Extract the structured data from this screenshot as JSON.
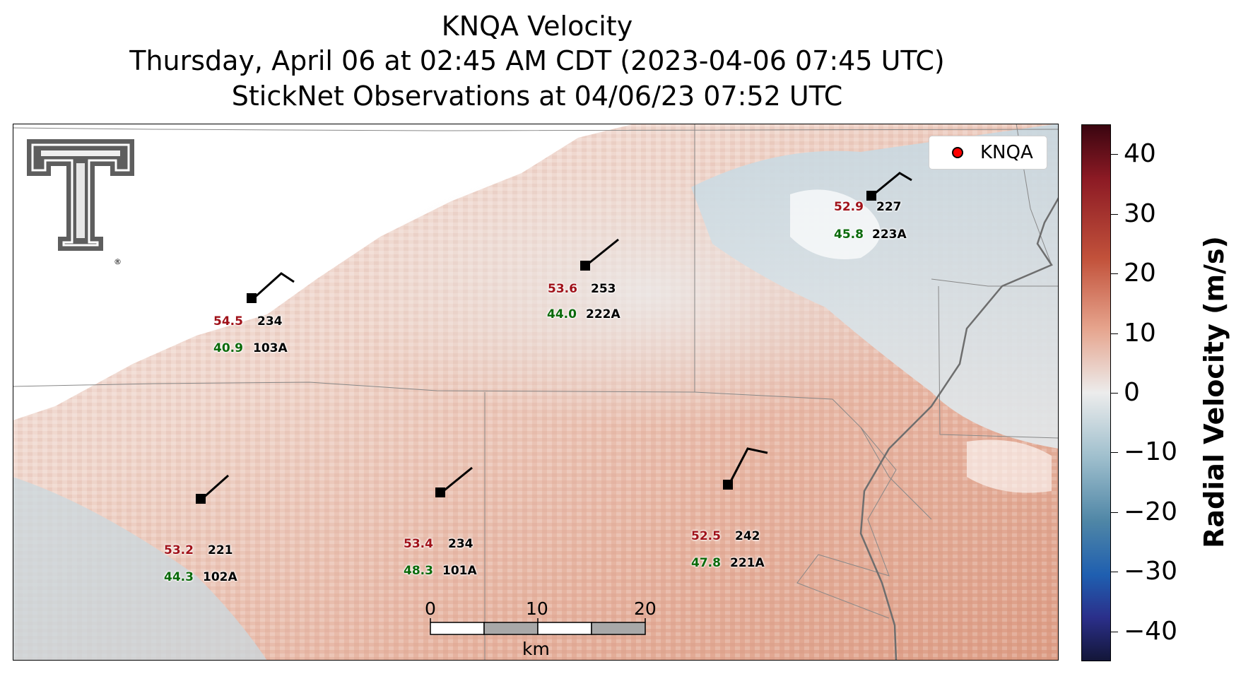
{
  "title": {
    "line1": "KNQA Velocity",
    "line2": "Thursday, April 06 at 02:45 AM CDT (2023-04-06 07:45 UTC)",
    "line3": "StickNet Observations at 04/06/23 07:52 UTC"
  },
  "legend": {
    "label": "KNQA",
    "marker_color": "#ff0000"
  },
  "colorbar": {
    "label": "Radial Velocity (m/s)",
    "ticks": [
      "40",
      "30",
      "20",
      "10",
      "0",
      "−10",
      "−20",
      "−30",
      "−40"
    ],
    "range": [
      -45,
      45
    ]
  },
  "logo": {
    "name": "texas-tech-double-t-logo",
    "mark": "®"
  },
  "stations": [
    {
      "id": "103A",
      "temp": "54.5",
      "dewpoint": "40.9",
      "wind_dir": "234"
    },
    {
      "id": "222A",
      "temp": "53.6",
      "dewpoint": "44.0",
      "wind_dir": "253"
    },
    {
      "id": "223A",
      "temp": "52.9",
      "dewpoint": "45.8",
      "wind_dir": "227"
    },
    {
      "id": "102A",
      "temp": "53.2",
      "dewpoint": "44.3",
      "wind_dir": "221"
    },
    {
      "id": "101A",
      "temp": "53.4",
      "dewpoint": "48.3",
      "wind_dir": "234"
    },
    {
      "id": "221A",
      "temp": "52.5",
      "dewpoint": "47.8",
      "wind_dir": "242"
    }
  ],
  "scale_bar": {
    "labels": [
      "0",
      "10",
      "20"
    ],
    "unit": "km"
  },
  "colors": {
    "temp": "#a0121a",
    "dewpoint": "#0a6a0a",
    "receding": "#c2523b",
    "approaching": "#4f86a6"
  }
}
